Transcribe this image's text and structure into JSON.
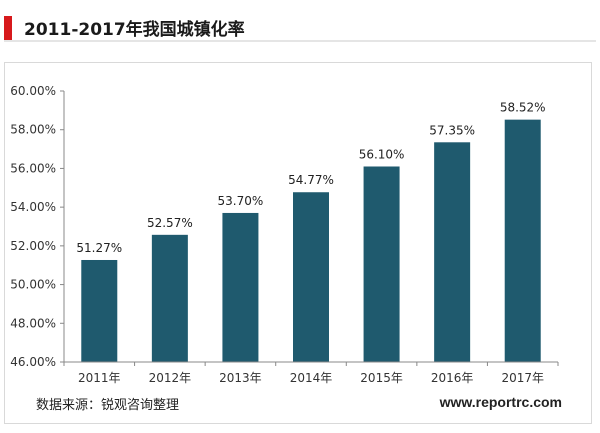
{
  "header": {
    "title": "2011-2017年我国城镇化率"
  },
  "footer": {
    "source": "数据来源：锐观咨询整理",
    "website": "www.reportrc.com"
  },
  "colors": {
    "bar": "#1f5a6e",
    "accent": "#d7191c"
  },
  "chart_data": {
    "type": "bar",
    "title": "",
    "xlabel": "",
    "ylabel": "",
    "categories": [
      "2011年",
      "2012年",
      "2013年",
      "2014年",
      "2015年",
      "2016年",
      "2017年"
    ],
    "values": [
      51.27,
      52.57,
      53.7,
      54.77,
      56.1,
      57.35,
      58.52
    ],
    "data_labels": [
      "51.27%",
      "52.57%",
      "53.70%",
      "54.77%",
      "56.10%",
      "57.35%",
      "58.52%"
    ],
    "ylim": [
      46,
      60
    ],
    "yticks": [
      46,
      48,
      50,
      52,
      54,
      56,
      58,
      60
    ],
    "ytick_labels": [
      "46.00%",
      "48.00%",
      "50.00%",
      "52.00%",
      "54.00%",
      "56.00%",
      "58.00%",
      "60.00%"
    ],
    "grid": false,
    "legend": "none"
  }
}
